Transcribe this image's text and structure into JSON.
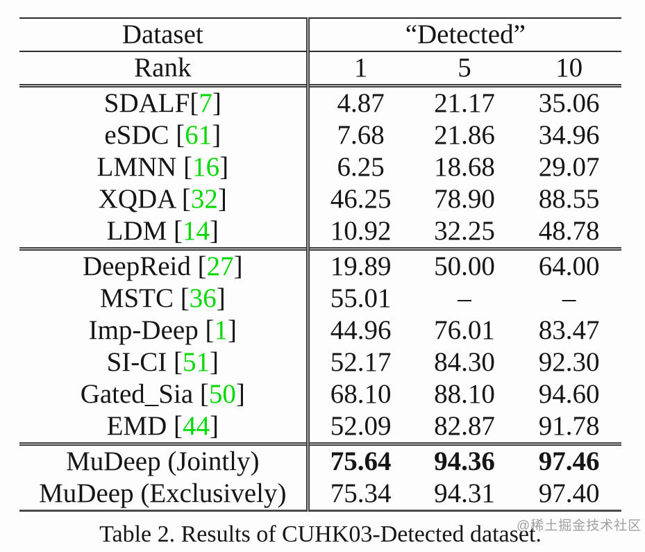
{
  "table": {
    "header": {
      "dataset_label": "Dataset",
      "detected_label": "“Detected”",
      "rank_label": "Rank",
      "rank_columns": [
        "1",
        "5",
        "10"
      ]
    },
    "groups": [
      {
        "rows": [
          {
            "label_prefix": "SDALF",
            "cite": "7",
            "values": [
              "4.87",
              "21.17",
              "35.06"
            ],
            "bold_values": false
          },
          {
            "label_prefix": "eSDC ",
            "cite": "61",
            "values": [
              "7.68",
              "21.86",
              "34.96"
            ],
            "bold_values": false
          },
          {
            "label_prefix": "LMNN ",
            "cite": "16",
            "values": [
              "6.25",
              "18.68",
              "29.07"
            ],
            "bold_values": false
          },
          {
            "label_prefix": "XQDA ",
            "cite": "32",
            "values": [
              "46.25",
              "78.90",
              "88.55"
            ],
            "bold_values": false
          },
          {
            "label_prefix": "LDM ",
            "cite": "14",
            "values": [
              "10.92",
              "32.25",
              "48.78"
            ],
            "bold_values": false
          }
        ]
      },
      {
        "rows": [
          {
            "label_prefix": "DeepReid ",
            "cite": "27",
            "values": [
              "19.89",
              "50.00",
              "64.00"
            ],
            "bold_values": false
          },
          {
            "label_prefix": "MSTC ",
            "cite": "36",
            "values": [
              "55.01",
              "–",
              "–"
            ],
            "bold_values": false
          },
          {
            "label_prefix": "Imp-Deep ",
            "cite": "1",
            "values": [
              "44.96",
              "76.01",
              "83.47"
            ],
            "bold_values": false
          },
          {
            "label_prefix": "SI-CI ",
            "cite": "51",
            "values": [
              "52.17",
              "84.30",
              "92.30"
            ],
            "bold_values": false
          },
          {
            "label_prefix": "Gated_Sia ",
            "cite": "50",
            "values": [
              "68.10",
              "88.10",
              "94.60"
            ],
            "bold_values": false
          },
          {
            "label_prefix": "EMD ",
            "cite": "44",
            "values": [
              "52.09",
              "82.87",
              "91.78"
            ],
            "bold_values": false
          }
        ]
      },
      {
        "rows": [
          {
            "label_prefix": "MuDeep (Jointly)",
            "cite": null,
            "values": [
              "75.64",
              "94.36",
              "97.46"
            ],
            "bold_values": true
          },
          {
            "label_prefix": "MuDeep (Exclusively)",
            "cite": null,
            "values": [
              "75.34",
              "94.31",
              "97.40"
            ],
            "bold_values": false
          }
        ]
      }
    ],
    "caption": "Table 2. Results of CUHK03-Detected dataset."
  },
  "watermark": "@稀土掘金技术社区",
  "colors": {
    "citation_green": "#00d800",
    "text": "#151515",
    "rule": "#3a3a3a",
    "watermark_gray": "#9e9e9e",
    "background": "#fdfdfd"
  }
}
